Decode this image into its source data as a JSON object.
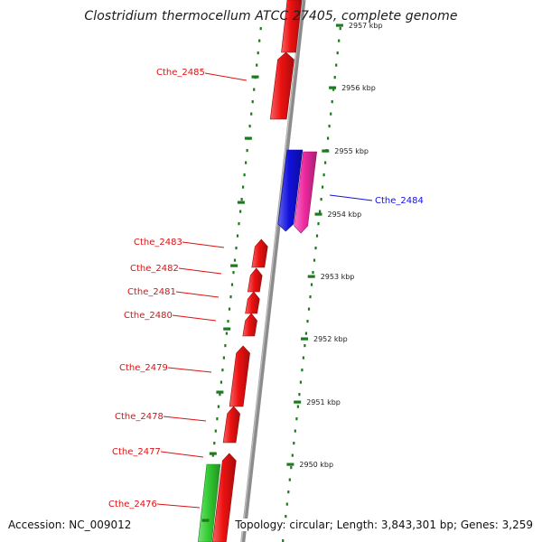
{
  "title": "Clostridium thermocellum ATCC 27405, complete genome",
  "footer": {
    "accession": "Accession: NC_009012",
    "summary": "Topology: circular; Length: 3,843,301 bp; Genes: 3,259"
  },
  "colors": {
    "backbone": "#8c8c8c",
    "ticks": "#1e7a1e",
    "gene_default": "#ee1111",
    "gene_highlight": "#1111dd",
    "gene_pink": "#ee2aa0",
    "gene_green": "#33cc33",
    "label_red": "#dd1111",
    "label_blue": "#1111dd"
  },
  "scale": {
    "unit": "kbp",
    "visible_ticks_kbp": [
      2957,
      2956,
      2955,
      2954,
      2953,
      2952,
      2951,
      2950
    ]
  },
  "ticks": [
    {
      "label": "2957 kbp"
    },
    {
      "label": "2956 kbp"
    },
    {
      "label": "2955 kbp"
    },
    {
      "label": "2954 kbp"
    },
    {
      "label": "2953 kbp"
    },
    {
      "label": "2952 kbp"
    },
    {
      "label": "2951 kbp"
    },
    {
      "label": "2950 kbp"
    }
  ],
  "genes": [
    {
      "name": "Cthe_2485",
      "strand": "-",
      "color": "#ee1111",
      "labeled": true
    },
    {
      "name": "Cthe_2484",
      "strand": "+",
      "color": "#1111dd",
      "labeled": true
    },
    {
      "name": "",
      "strand": "+",
      "color": "#ee2aa0",
      "labeled": false
    },
    {
      "name": "Cthe_2483",
      "strand": "-",
      "color": "#ee1111",
      "labeled": true
    },
    {
      "name": "Cthe_2482",
      "strand": "-",
      "color": "#ee1111",
      "labeled": true
    },
    {
      "name": "Cthe_2481",
      "strand": "-",
      "color": "#ee1111",
      "labeled": true
    },
    {
      "name": "Cthe_2480",
      "strand": "-",
      "color": "#ee1111",
      "labeled": true
    },
    {
      "name": "Cthe_2479",
      "strand": "-",
      "color": "#ee1111",
      "labeled": true
    },
    {
      "name": "Cthe_2478",
      "strand": "-",
      "color": "#ee1111",
      "labeled": true
    },
    {
      "name": "Cthe_2477",
      "strand": "-",
      "color": "#ee1111",
      "labeled": true
    },
    {
      "name": "Cthe_2476",
      "strand": "-",
      "color": "#33cc33",
      "labeled": true
    }
  ]
}
